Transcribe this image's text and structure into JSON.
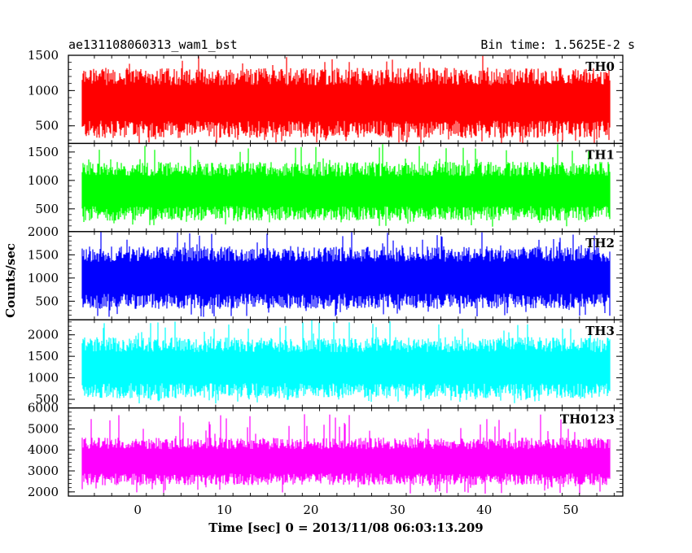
{
  "header": {
    "title": "ae131108060313_wam1_bst",
    "bin_time": "Bin time: 1.5625E-2 s"
  },
  "chart_data": {
    "type": "line",
    "title": "ae131108060313_wam1_bst",
    "xlabel": "Time [sec] 0 = 2013/11/08 06:03:13.209",
    "ylabel": "Counts/sec",
    "xlim": [
      -8,
      56
    ],
    "x_ticks": [
      0,
      10,
      20,
      30,
      40,
      50
    ],
    "x_tick_labels": [
      "0",
      "10",
      "20",
      "30",
      "40",
      "50"
    ],
    "series_x_range": [
      -8,
      56
    ],
    "panels": [
      {
        "name": "TH0",
        "color": "#ff0000",
        "ylim": [
          250,
          1500
        ],
        "yticks": [
          500,
          1000,
          1500
        ],
        "ytick_labels": [
          "500",
          "1000",
          "1500"
        ],
        "low": 450,
        "high": 1150,
        "min": 250,
        "max": 1500
      },
      {
        "name": "TH1",
        "color": "#00ff00",
        "ylim": [
          100,
          1650
        ],
        "yticks": [
          500,
          1000,
          1500
        ],
        "ytick_labels": [
          "500",
          "1000",
          "1500"
        ],
        "low": 420,
        "high": 1150,
        "min": 180,
        "max": 1650
      },
      {
        "name": "TH2",
        "color": "#0000ff",
        "ylim": [
          100,
          2000
        ],
        "yticks": [
          500,
          1000,
          1500,
          2000
        ],
        "ytick_labels": [
          "500",
          "1000",
          "1500",
          "2000"
        ],
        "low": 500,
        "high": 1450,
        "min": 150,
        "max": 2000
      },
      {
        "name": "TH3",
        "color": "#00ffff",
        "ylim": [
          300,
          2350
        ],
        "yticks": [
          500,
          1000,
          1500,
          2000
        ],
        "ytick_labels": [
          "500",
          "1000",
          "1500",
          "2000"
        ],
        "low": 700,
        "high": 1700,
        "min": 400,
        "max": 2350
      },
      {
        "name": "TH0123",
        "color": "#ff00ff",
        "ylim": [
          1800,
          6000
        ],
        "yticks": [
          2000,
          3000,
          4000,
          5000,
          6000
        ],
        "ytick_labels": [
          "2000",
          "3000",
          "4000",
          "5000",
          "6000"
        ],
        "low": 2600,
        "high": 4200,
        "min": 1900,
        "max": 5700
      }
    ],
    "grid": false,
    "legend": "none"
  }
}
